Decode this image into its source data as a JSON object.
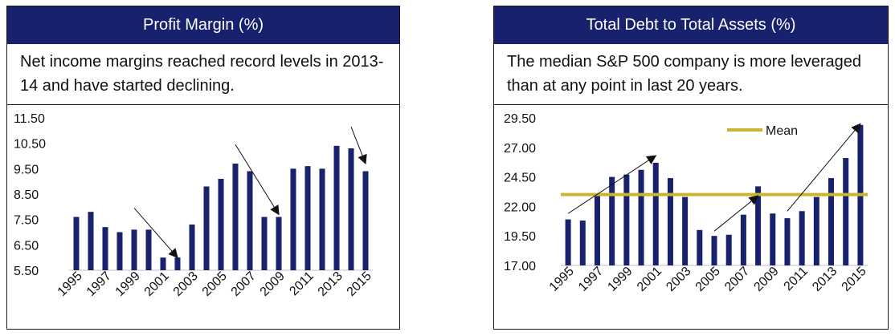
{
  "colors": {
    "header_bg": "#17216e",
    "bar": "#17216e",
    "mean_line": "#c9b52e",
    "arrow": "#111111"
  },
  "left_panel": {
    "title": "Profit Margin (%)",
    "description": "Net income margins reached record levels in 2013-14 and have started declining."
  },
  "right_panel": {
    "title": "Total Debt to Total Assets (%)",
    "description": "The median S&P 500 company is more leveraged than at any point in last 20 years."
  },
  "chart_data": [
    {
      "type": "bar",
      "title": "Profit Margin (%)",
      "categories": [
        "1995",
        "1996",
        "1997",
        "1998",
        "1999",
        "2000",
        "2001",
        "2002",
        "2003",
        "2004",
        "2005",
        "2006",
        "2007",
        "2008",
        "2009",
        "2010",
        "2011",
        "2012",
        "2013",
        "2014",
        "2015"
      ],
      "values": [
        7.6,
        7.8,
        7.2,
        7.0,
        7.1,
        7.1,
        6.0,
        6.0,
        7.3,
        8.8,
        9.1,
        9.7,
        9.4,
        7.6,
        7.6,
        9.5,
        9.6,
        9.5,
        10.4,
        10.3,
        9.4
      ],
      "xtick_labels": [
        "1995",
        "1997",
        "1999",
        "2001",
        "2003",
        "2005",
        "2007",
        "2009",
        "2011",
        "2013",
        "2015"
      ],
      "ytick_labels": [
        "5.50",
        "6.50",
        "7.50",
        "8.50",
        "9.50",
        "10.50",
        "11.50"
      ],
      "ylim": [
        5.5,
        11.5
      ],
      "annotations": [
        {
          "type": "arrow",
          "from": [
            "1999",
            7.95
          ],
          "to": [
            "2002",
            6.0
          ]
        },
        {
          "type": "arrow",
          "from": [
            "2006",
            10.45
          ],
          "to": [
            "2009",
            7.7
          ]
        },
        {
          "type": "arrow",
          "from": [
            "2014",
            11.15
          ],
          "to": [
            "2015",
            9.7
          ]
        }
      ]
    },
    {
      "type": "bar",
      "title": "Total Debt to Total Assets (%)",
      "categories": [
        "1995",
        "1996",
        "1997",
        "1998",
        "1999",
        "2000",
        "2001",
        "2002",
        "2003",
        "2004",
        "2005",
        "2006",
        "2007",
        "2008",
        "2009",
        "2010",
        "2011",
        "2012",
        "2013",
        "2014",
        "2015"
      ],
      "values": [
        20.9,
        20.8,
        22.9,
        24.5,
        24.7,
        25.1,
        25.7,
        24.4,
        22.8,
        20.0,
        19.5,
        19.6,
        21.3,
        23.7,
        21.4,
        21.0,
        21.6,
        22.8,
        24.4,
        26.1,
        28.9
      ],
      "xtick_labels": [
        "1995",
        "1997",
        "1999",
        "2001",
        "2003",
        "2005",
        "2007",
        "2009",
        "2011",
        "2013",
        "2015"
      ],
      "ytick_labels": [
        "17.00",
        "19.50",
        "22.00",
        "24.50",
        "27.00",
        "29.50"
      ],
      "ylim": [
        17.0,
        29.5
      ],
      "mean": 23.0,
      "legend": [
        {
          "name": "Mean",
          "position": "top-right"
        }
      ],
      "annotations": [
        {
          "type": "arrow",
          "from": [
            "1995",
            21.4
          ],
          "to": [
            "2001",
            26.3
          ]
        },
        {
          "type": "arrow",
          "from": [
            "2005",
            19.9
          ],
          "to": [
            "2008",
            22.9
          ]
        },
        {
          "type": "arrow",
          "from": [
            "2010",
            21.6
          ],
          "to": [
            "2015",
            29.0
          ]
        }
      ]
    }
  ]
}
